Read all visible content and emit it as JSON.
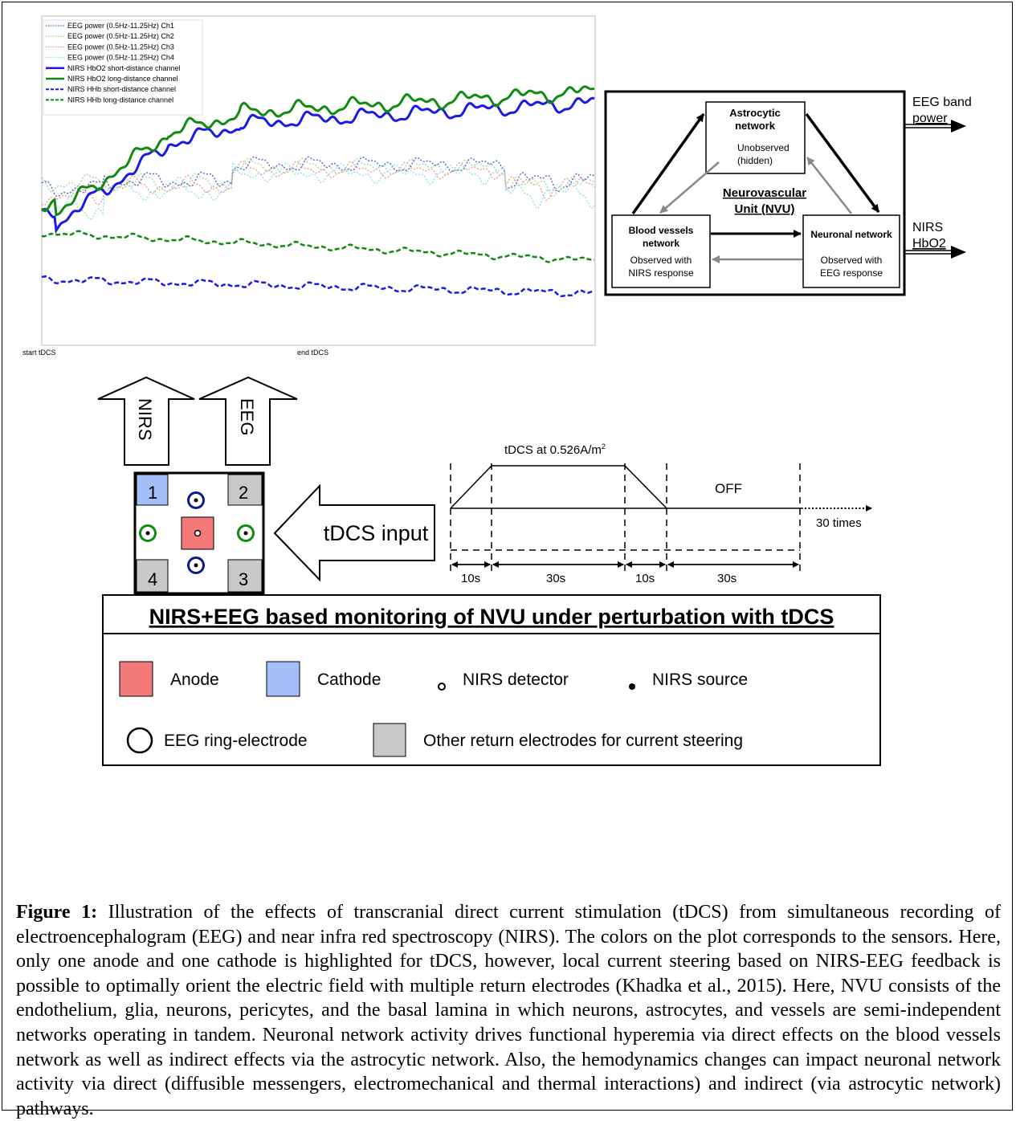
{
  "chart": {
    "legend": [
      {
        "label": "EEG power (0.5Hz-11.25Hz) Ch1",
        "color": "#4a56c8",
        "style": "dotted-thin"
      },
      {
        "label": "EEG power (0.5Hz-11.25Hz) Ch2",
        "color": "#9ad69a",
        "style": "dotted-thin"
      },
      {
        "label": "EEG power (0.5Hz-11.25Hz) Ch3",
        "color": "#e89a84",
        "style": "dotted-thin"
      },
      {
        "label": "EEG power (0.5Hz-11.25Hz) Ch4",
        "color": "#7fe3e8",
        "style": "dotted-thin"
      },
      {
        "label": "NIRS HbO2 short-distance channel",
        "color": "#1a1ae6",
        "style": "solid"
      },
      {
        "label": "NIRS HbO2 long-distance channel",
        "color": "#118a11",
        "style": "solid"
      },
      {
        "label": "NIRS HHb short-distance channel",
        "color": "#1a1ae6",
        "style": "dashed"
      },
      {
        "label": "NIRS HHb long-distance channel",
        "color": "#118a11",
        "style": "dashed"
      }
    ],
    "x_labels": [
      "start tDCS",
      "end tDCS"
    ]
  },
  "nvu": {
    "astro_title": "Astrocytic network",
    "astro_sub": "Unobserved (hidden)",
    "center_title_1": "Neurovascular",
    "center_title_2": "Unit (NVU)",
    "blood_title_1": "Blood vessels",
    "blood_title_2": "network",
    "blood_sub_1": "Observed with",
    "blood_sub_2": "NIRS response",
    "neuronal_title": "Neuronal network",
    "neuronal_sub_1": "Observed with",
    "neuronal_sub_2": "EEG response",
    "out_eeg_1": "EEG band",
    "out_eeg_2": "power",
    "out_nirs_1": "NIRS",
    "out_nirs_2": "HbO2"
  },
  "montage": {
    "arrow_nirs": "NIRS",
    "arrow_eeg": "EEG",
    "input_arrow": "tDCS input",
    "electrodes": [
      "1",
      "2",
      "3",
      "4"
    ],
    "colors": {
      "anode": "#f47a7a",
      "cathode": "#a3bff7",
      "return": "#c8c8c8",
      "eeg_ring": "#118a11",
      "nirs_ring": "#0a1a8a"
    }
  },
  "timing": {
    "title_prefix": "tDCS at 0.526A/m",
    "title_sup": "2",
    "off": "OFF",
    "repeat": "30 times",
    "durations": [
      "10s",
      "30s",
      "10s",
      "30s"
    ]
  },
  "legend_box": {
    "title": "NIRS+EEG based monitoring of NVU under perturbation with tDCS",
    "anode": "Anode",
    "cathode": "Cathode",
    "nirs_detector": "NIRS detector",
    "nirs_source": "NIRS source",
    "eeg_ring": "EEG ring-electrode",
    "other_return": "Other return electrodes for current steering"
  },
  "caption": {
    "label": "Figure 1:",
    "text": " Illustration of the effects of transcranial direct current stimulation (tDCS) from simultaneous recording of electroencephalogram (EEG) and near infra red spectroscopy (NIRS). The colors on the plot corresponds to the sensors. Here, only one anode and one cathode is highlighted for tDCS, however, local current steering based on NIRS-EEG feedback is possible to optimally orient the electric field with multiple return electrodes (Khadka et al., 2015). Here, NVU consists of the endothelium, glia, neurons, pericytes, and the basal lamina in which neurons, astrocytes, and vessels are semi-independent networks operating in tandem. Neuronal network activity drives functional hyperemia via direct effects on the blood vessels network as well as indirect effects via the astrocytic network. Also, the hemodynamics changes can impact neuronal network activity via direct (diffusible messengers, electromechanical and thermal interactions) and indirect (via astrocytic network) pathways."
  }
}
